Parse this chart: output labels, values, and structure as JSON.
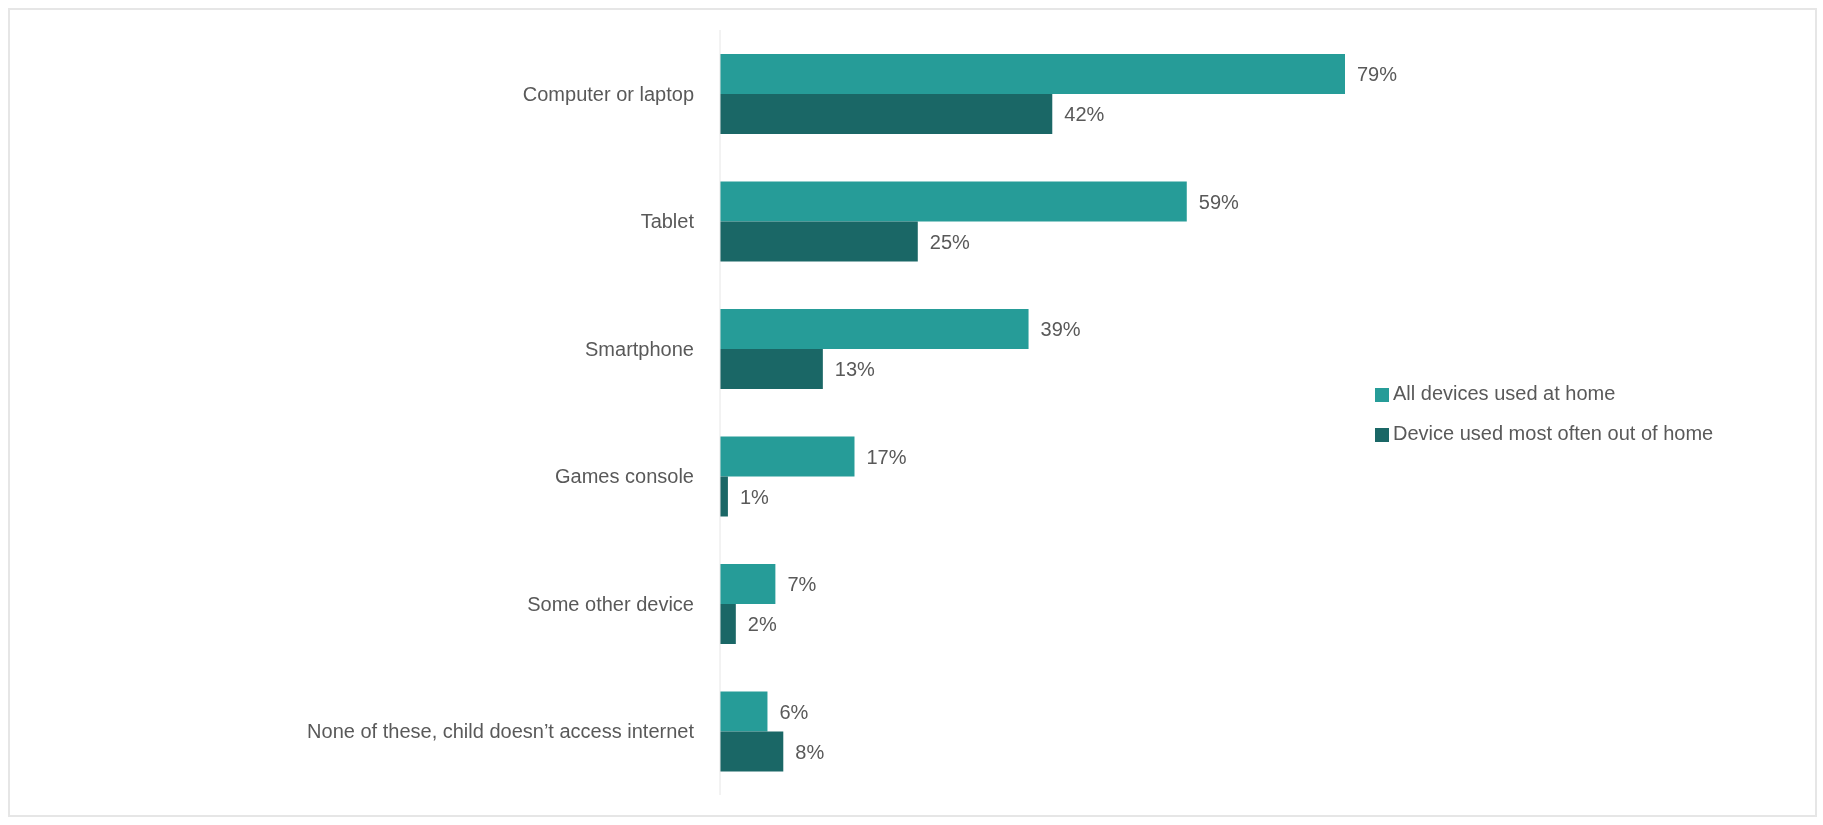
{
  "chart_data": {
    "type": "bar",
    "orientation": "horizontal",
    "categories": [
      "Computer or laptop",
      "Tablet",
      "Smartphone",
      "Games console",
      "Some other device",
      "None of these, child doesn’t access internet"
    ],
    "series": [
      {
        "name": "All devices used at home",
        "color": "#269c98",
        "values": [
          79,
          59,
          39,
          17,
          7,
          6
        ],
        "value_labels": [
          "79%",
          "59%",
          "39%",
          "17%",
          "7%",
          "6%"
        ]
      },
      {
        "name": "Device used most often out of home",
        "color": "#1a6766",
        "values": [
          42,
          25,
          13,
          1,
          2,
          8
        ],
        "value_labels": [
          "42%",
          "25%",
          "13%",
          "1%",
          "2%",
          "8%"
        ]
      }
    ],
    "legend": "right",
    "grid": false
  }
}
